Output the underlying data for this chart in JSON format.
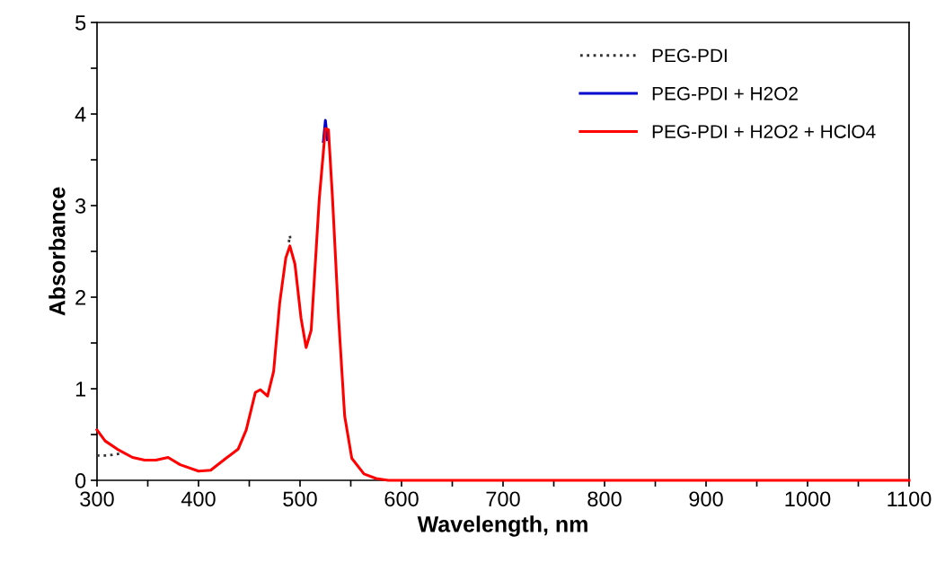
{
  "chart_data": {
    "type": "line",
    "xlabel": "Wavelength, nm",
    "ylabel": "Absorbance",
    "x": [
      300,
      308,
      320,
      335,
      347,
      358,
      370,
      382,
      400,
      412,
      427,
      439,
      447,
      456,
      461,
      468,
      474,
      480,
      486,
      490,
      495,
      501,
      506,
      511,
      519,
      525,
      528,
      532,
      538,
      544,
      551,
      563,
      575,
      587,
      650,
      800,
      950,
      1100
    ],
    "series": [
      {
        "name": "PEG-PDI",
        "color": "#333333",
        "line_style": "dotted",
        "x": [
          300,
          310,
          322,
          400,
          489,
          490,
          491
        ],
        "values": [
          0.27,
          0.27,
          0.29,
          null,
          2.6,
          2.67,
          2.6
        ]
      },
      {
        "name": "PEG-PDI + H2O2",
        "color": "#0000cc",
        "line_style": "solid",
        "x": [
          523,
          525,
          527
        ],
        "values": [
          3.7,
          3.93,
          3.72
        ]
      },
      {
        "name": "PEG-PDI + H2O2 + HClO4",
        "color": "#ff0000",
        "line_style": "solid",
        "values": [
          0.55,
          0.43,
          0.34,
          0.25,
          0.22,
          0.22,
          0.25,
          0.17,
          0.1,
          0.11,
          0.24,
          0.34,
          0.55,
          0.96,
          0.99,
          0.92,
          1.19,
          1.94,
          2.43,
          2.56,
          2.36,
          1.77,
          1.45,
          1.64,
          3.08,
          3.84,
          3.83,
          3.08,
          1.77,
          0.7,
          0.24,
          0.07,
          0.02,
          0,
          0,
          0,
          0,
          0
        ]
      }
    ],
    "xlim": [
      300,
      1100
    ],
    "xticks": [
      300,
      {
        "value": 350,
        "label": null
      },
      400,
      {
        "value": 450,
        "label": null
      },
      500,
      {
        "value": 550,
        "label": null
      },
      600,
      {
        "value": 650,
        "label": null
      },
      700,
      {
        "value": 750,
        "label": null
      },
      800,
      {
        "value": 850,
        "label": null
      },
      900,
      {
        "value": 950,
        "label": null
      },
      1000,
      {
        "value": 1050,
        "label": null
      },
      1100
    ],
    "ylim": [
      0,
      5
    ],
    "yticks": [
      0,
      {
        "value": 0.5,
        "label": null
      },
      1,
      {
        "value": 1.5,
        "label": null
      },
      2,
      {
        "value": 2.5,
        "label": null
      },
      3,
      {
        "value": 3.5,
        "label": null
      },
      4,
      {
        "value": 4.5,
        "label": null
      },
      5
    ],
    "grid": false,
    "legend": "top right"
  }
}
